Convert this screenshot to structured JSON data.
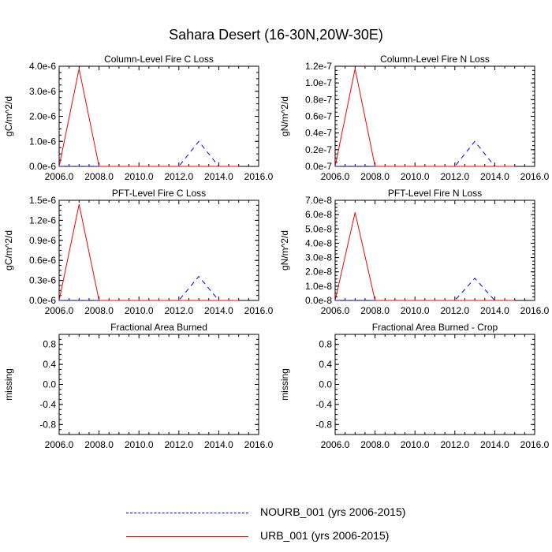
{
  "title": "Sahara Desert (16-30N,20W-30E)",
  "legend": [
    {
      "label": "NOURB_001 (yrs 2006-2015)",
      "color": "#0000ff",
      "style": "dashed"
    },
    {
      "label": "URB_001 (yrs 2006-2015)",
      "color": "#ff0000",
      "style": "solid"
    }
  ],
  "chart_data": [
    {
      "type": "line",
      "title": "Column-Level Fire C Loss",
      "ylabel": "gC/m^2/d",
      "xlim": [
        2006,
        2016
      ],
      "ylim": [
        0,
        4e-06
      ],
      "x_ticks": [
        "2006.0",
        "2008.0",
        "2010.0",
        "2012.0",
        "2014.0",
        "2016.0"
      ],
      "y_ticks": [
        {
          "v": 0,
          "label": "0.0e-6"
        },
        {
          "v": 1e-06,
          "label": "1.0e-6"
        },
        {
          "v": 2e-06,
          "label": "2.0e-6"
        },
        {
          "v": 3e-06,
          "label": "3.0e-6"
        },
        {
          "v": 4e-06,
          "label": "4.0e-6"
        }
      ],
      "x": [
        2006,
        2007,
        2008,
        2009,
        2010,
        2011,
        2012,
        2013,
        2014,
        2015
      ],
      "series": [
        {
          "name": "NOURB_001",
          "color": "#0000ff",
          "style": "dashed",
          "values": [
            0,
            0,
            0,
            0,
            0,
            0,
            0,
            1e-06,
            0,
            0
          ]
        },
        {
          "name": "URB_001",
          "color": "#ff0000",
          "style": "solid",
          "values": [
            0,
            3.9e-06,
            0,
            0,
            0,
            0,
            0,
            0,
            0,
            0
          ]
        }
      ]
    },
    {
      "type": "line",
      "title": "Column-Level Fire N Loss",
      "ylabel": "gN/m^2/d",
      "xlim": [
        2006,
        2016
      ],
      "ylim": [
        0,
        1.2e-07
      ],
      "x_ticks": [
        "2006.0",
        "2008.0",
        "2010.0",
        "2012.0",
        "2014.0",
        "2016.0"
      ],
      "y_ticks": [
        {
          "v": 0,
          "label": "0.0e-7"
        },
        {
          "v": 2e-08,
          "label": "0.2e-7"
        },
        {
          "v": 4e-08,
          "label": "0.4e-7"
        },
        {
          "v": 6e-08,
          "label": "0.6e-7"
        },
        {
          "v": 8e-08,
          "label": "0.8e-7"
        },
        {
          "v": 1e-07,
          "label": "1.0e-7"
        },
        {
          "v": 1.2e-07,
          "label": "1.2e-7"
        }
      ],
      "x": [
        2006,
        2007,
        2008,
        2009,
        2010,
        2011,
        2012,
        2013,
        2014,
        2015
      ],
      "series": [
        {
          "name": "NOURB_001",
          "color": "#0000ff",
          "style": "dashed",
          "values": [
            0,
            0,
            0,
            0,
            0,
            0,
            0,
            3e-08,
            0,
            0
          ]
        },
        {
          "name": "URB_001",
          "color": "#ff0000",
          "style": "solid",
          "values": [
            0,
            1.17e-07,
            0,
            0,
            0,
            0,
            0,
            0,
            0,
            0
          ]
        }
      ]
    },
    {
      "type": "line",
      "title": "PFT-Level Fire C Loss",
      "ylabel": "gC/m^2/d",
      "xlim": [
        2006,
        2016
      ],
      "ylim": [
        0,
        1.5e-06
      ],
      "x_ticks": [
        "2006.0",
        "2008.0",
        "2010.0",
        "2012.0",
        "2014.0",
        "2016.0"
      ],
      "y_ticks": [
        {
          "v": 0,
          "label": "0.0e-6"
        },
        {
          "v": 3e-07,
          "label": "0.3e-6"
        },
        {
          "v": 6e-07,
          "label": "0.6e-6"
        },
        {
          "v": 9e-07,
          "label": "0.9e-6"
        },
        {
          "v": 1.2e-06,
          "label": "1.2e-6"
        },
        {
          "v": 1.5e-06,
          "label": "1.5e-6"
        }
      ],
      "x": [
        2006,
        2007,
        2008,
        2009,
        2010,
        2011,
        2012,
        2013,
        2014,
        2015
      ],
      "series": [
        {
          "name": "NOURB_001",
          "color": "#0000ff",
          "style": "dashed",
          "values": [
            0,
            0,
            0,
            0,
            0,
            0,
            0,
            3.6e-07,
            0,
            0
          ]
        },
        {
          "name": "URB_001",
          "color": "#ff0000",
          "style": "solid",
          "values": [
            0,
            1.44e-06,
            0,
            0,
            0,
            0,
            0,
            0,
            0,
            0
          ]
        }
      ]
    },
    {
      "type": "line",
      "title": "PFT-Level Fire N Loss",
      "ylabel": "gN/m^2/d",
      "xlim": [
        2006,
        2016
      ],
      "ylim": [
        0,
        7e-08
      ],
      "x_ticks": [
        "2006.0",
        "2008.0",
        "2010.0",
        "2012.0",
        "2014.0",
        "2016.0"
      ],
      "y_ticks": [
        {
          "v": 0,
          "label": "0.0e-8"
        },
        {
          "v": 1e-08,
          "label": "1.0e-8"
        },
        {
          "v": 2e-08,
          "label": "2.0e-8"
        },
        {
          "v": 3e-08,
          "label": "3.0e-8"
        },
        {
          "v": 4e-08,
          "label": "4.0e-8"
        },
        {
          "v": 5e-08,
          "label": "5.0e-8"
        },
        {
          "v": 6e-08,
          "label": "6.0e-8"
        },
        {
          "v": 7e-08,
          "label": "7.0e-8"
        }
      ],
      "x": [
        2006,
        2007,
        2008,
        2009,
        2010,
        2011,
        2012,
        2013,
        2014,
        2015
      ],
      "series": [
        {
          "name": "NOURB_001",
          "color": "#0000ff",
          "style": "dashed",
          "values": [
            0,
            0,
            0,
            0,
            0,
            0,
            0,
            1.55e-08,
            0,
            0
          ]
        },
        {
          "name": "URB_001",
          "color": "#ff0000",
          "style": "solid",
          "values": [
            0,
            6.15e-08,
            0,
            0,
            0,
            0,
            0,
            0,
            0,
            0
          ]
        }
      ]
    },
    {
      "type": "line",
      "title": "Fractional Area Burned",
      "ylabel": "missing",
      "xlim": [
        2006,
        2016
      ],
      "ylim": [
        -1,
        1
      ],
      "x_ticks": [
        "2006.0",
        "2008.0",
        "2010.0",
        "2012.0",
        "2014.0",
        "2016.0"
      ],
      "y_ticks": [
        {
          "v": -0.8,
          "label": "-0.8"
        },
        {
          "v": -0.4,
          "label": "-0.4"
        },
        {
          "v": 0,
          "label": "0.0"
        },
        {
          "v": 0.4,
          "label": "0.4"
        },
        {
          "v": 0.8,
          "label": "0.8"
        }
      ],
      "x": [],
      "series": []
    },
    {
      "type": "line",
      "title": "Fractional Area Burned - Crop",
      "ylabel": "missing",
      "xlim": [
        2006,
        2016
      ],
      "ylim": [
        -1,
        1
      ],
      "x_ticks": [
        "2006.0",
        "2008.0",
        "2010.0",
        "2012.0",
        "2014.0",
        "2016.0"
      ],
      "y_ticks": [
        {
          "v": -0.8,
          "label": "-0.8"
        },
        {
          "v": -0.4,
          "label": "-0.4"
        },
        {
          "v": 0,
          "label": "0.0"
        },
        {
          "v": 0.4,
          "label": "0.4"
        },
        {
          "v": 0.8,
          "label": "0.8"
        }
      ],
      "x": [],
      "series": []
    }
  ]
}
